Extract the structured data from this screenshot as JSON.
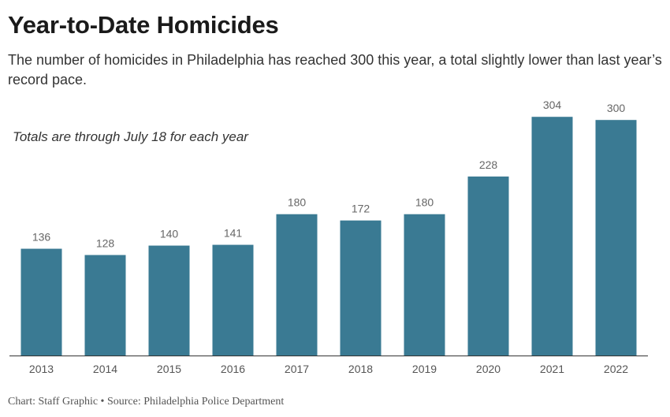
{
  "header": {
    "title": "Year-to-Date Homicides",
    "subtitle": "The number of homicides in Philadelphia has reached 300 this year, a total slightly lower than last year’s record pace.",
    "note": "Totals are through July 18 for each year"
  },
  "footer": {
    "credit": "Chart: Staff Graphic • Source: Philadelphia Police Department"
  },
  "colors": {
    "bar": "#3a7a93",
    "axis": "#333333"
  },
  "chart_data": {
    "type": "bar",
    "title": "Year-to-Date Homicides",
    "xlabel": "",
    "ylabel": "",
    "ylim": [
      0,
      320
    ],
    "grid": false,
    "categories": [
      "2013",
      "2014",
      "2015",
      "2016",
      "2017",
      "2018",
      "2019",
      "2020",
      "2021",
      "2022"
    ],
    "values": [
      136,
      128,
      140,
      141,
      180,
      172,
      180,
      228,
      304,
      300
    ]
  }
}
